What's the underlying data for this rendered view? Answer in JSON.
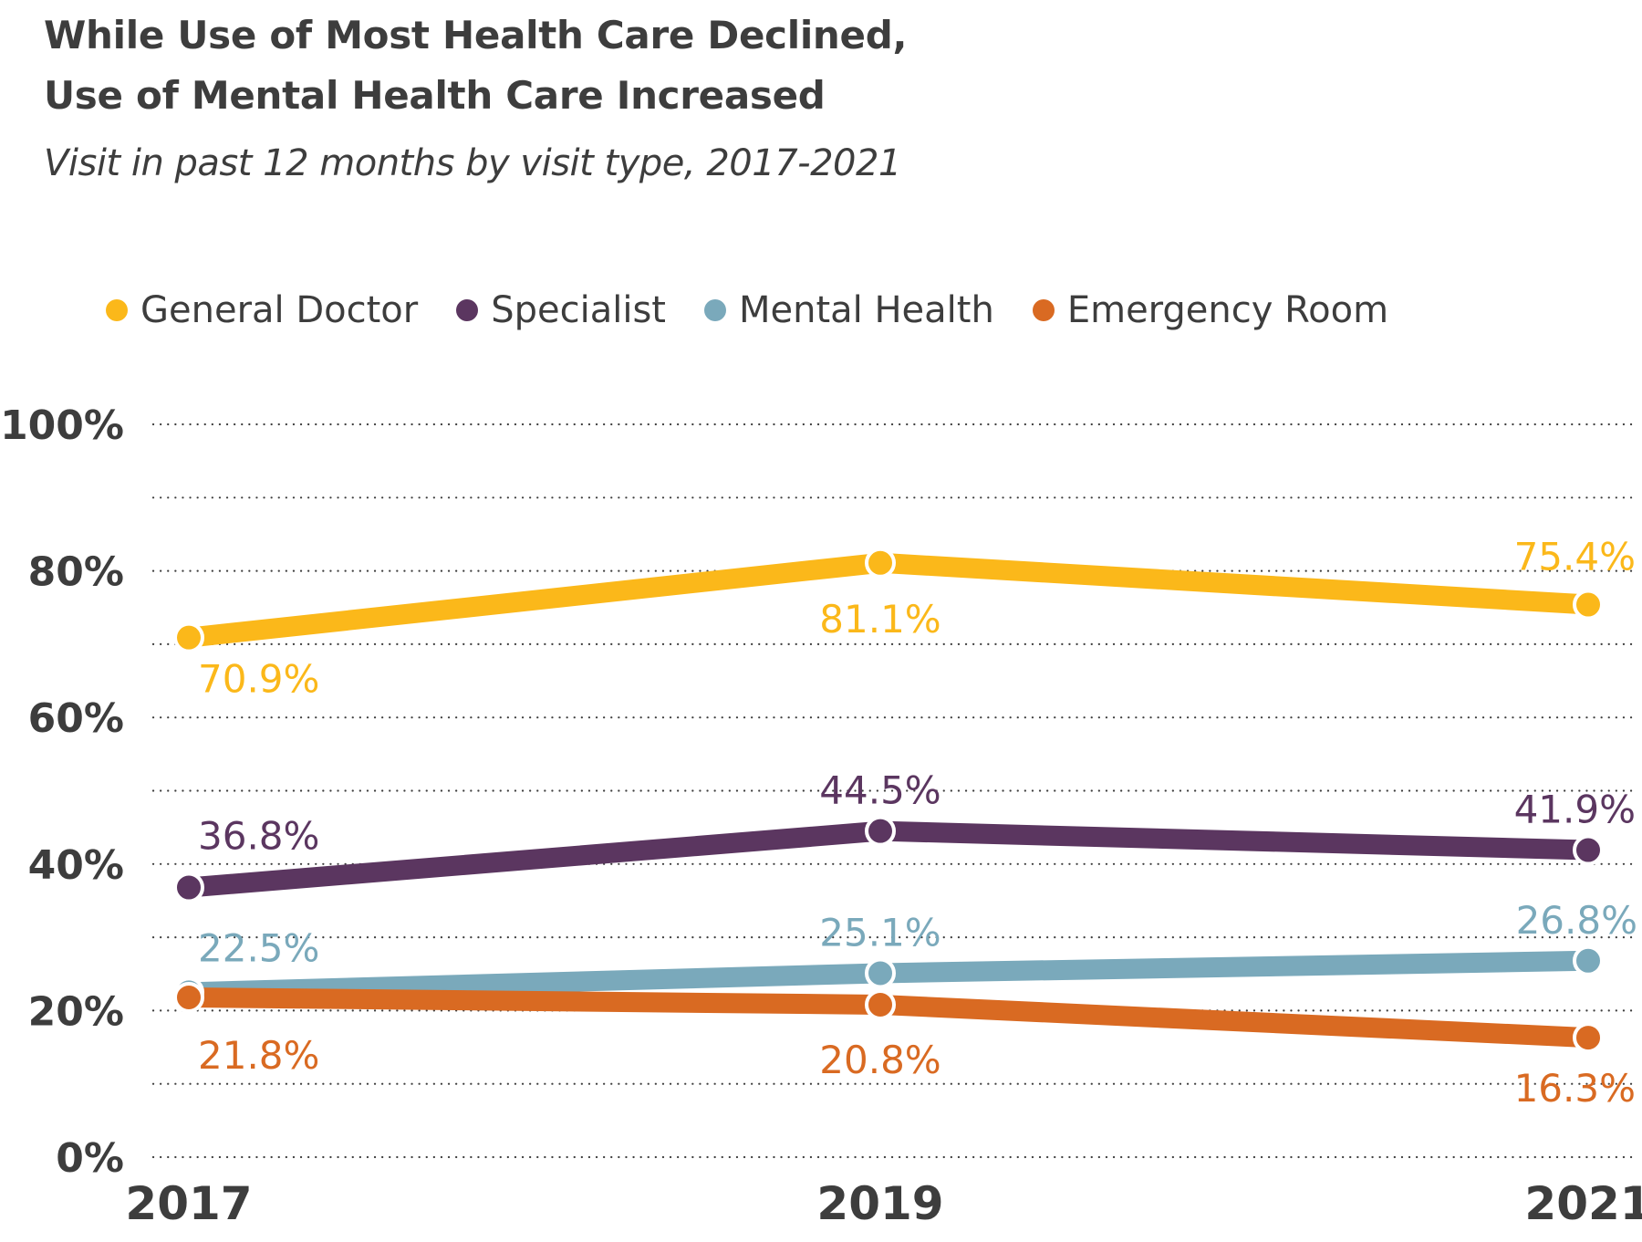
{
  "title_line1": "While Use of Most Health Care Declined,",
  "title_line2": "Use of Mental Health Care Increased",
  "subtitle": "Visit in past 12 months by visit type, 2017-2021",
  "legend": [
    {
      "label": "General Doctor",
      "color": "#fbb81a"
    },
    {
      "label": "Specialist",
      "color": "#5b3660"
    },
    {
      "label": "Mental Health",
      "color": "#7aa9bb"
    },
    {
      "label": "Emergency Room",
      "color": "#d96a22"
    }
  ],
  "chart_data": {
    "type": "line",
    "x": [
      "2017",
      "2019",
      "2021"
    ],
    "ylim": [
      0,
      100
    ],
    "yticks": [
      0,
      20,
      40,
      60,
      80,
      100
    ],
    "ytick_labels": [
      "0%",
      "20%",
      "40%",
      "60%",
      "80%",
      "100%"
    ],
    "grid": true,
    "legend_position": "top",
    "series": [
      {
        "name": "General Doctor",
        "color": "#fbb81a",
        "values": [
          70.9,
          81.1,
          75.4
        ],
        "labels": [
          "70.9%",
          "81.1%",
          "75.4%"
        ]
      },
      {
        "name": "Specialist",
        "color": "#5b3660",
        "values": [
          36.8,
          44.5,
          41.9
        ],
        "labels": [
          "36.8%",
          "44.5%",
          "41.9%"
        ]
      },
      {
        "name": "Mental Health",
        "color": "#7aa9bb",
        "values": [
          22.5,
          25.1,
          26.8
        ],
        "labels": [
          "22.5%",
          "25.1%",
          "26.8%"
        ]
      },
      {
        "name": "Emergency Room",
        "color": "#d96a22",
        "values": [
          21.8,
          20.8,
          16.3
        ],
        "labels": [
          "21.8%",
          "20.8%",
          "16.3%"
        ]
      }
    ]
  }
}
